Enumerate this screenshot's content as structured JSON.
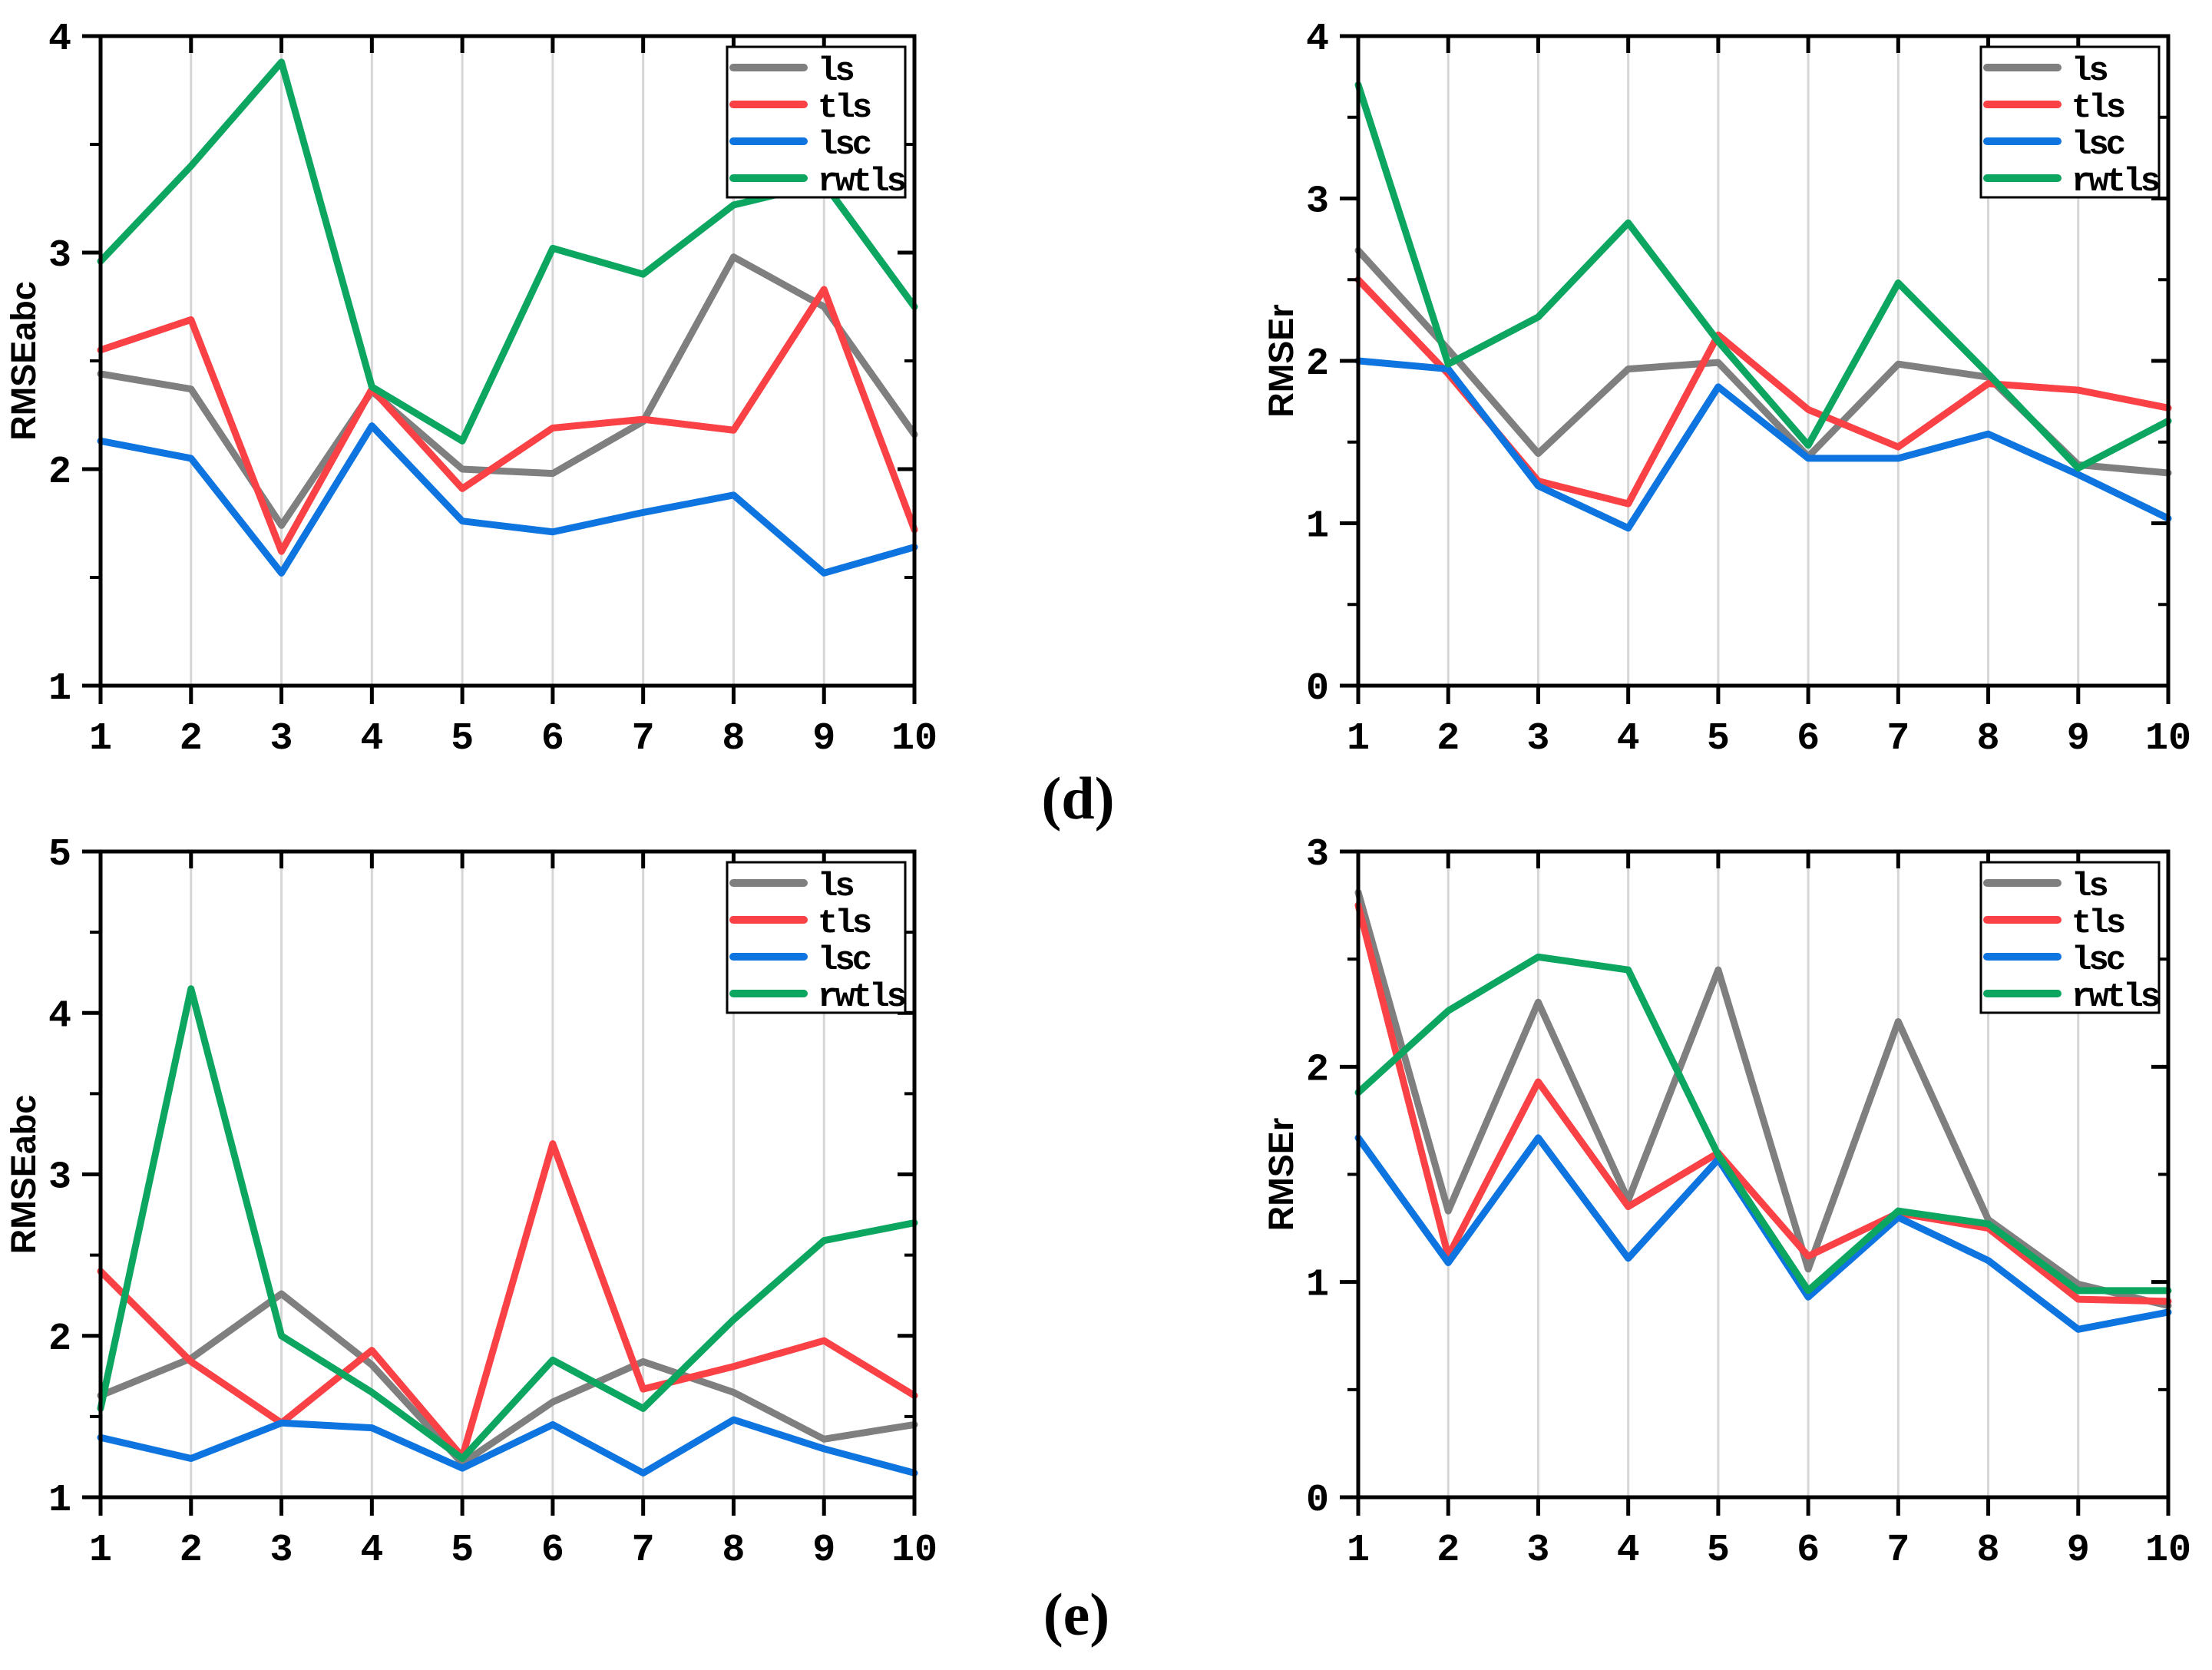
{
  "figure": {
    "background": "#ffffff",
    "panel_labels": [
      {
        "id": "d",
        "text": "(d)"
      },
      {
        "id": "e",
        "text": "(e)"
      }
    ],
    "legend_labels": [
      "ls",
      "tls",
      "lsc",
      "rwtls"
    ],
    "colors": {
      "ls": "#7f7f7f",
      "tls": "#fa4145",
      "lsc": "#0d74e0",
      "rwtls": "#0ca661",
      "grid": "#d6d6d6",
      "axis": "#000000",
      "legend_bg": "#ffffff"
    }
  },
  "chart_data": [
    {
      "id": "d-left",
      "type": "line",
      "panel": "(d)",
      "title": "",
      "xlabel": "",
      "ylabel": "RMSEabc",
      "x": [
        1,
        2,
        3,
        4,
        5,
        6,
        7,
        8,
        9,
        10
      ],
      "xlim": [
        1,
        10
      ],
      "ylim": [
        1,
        4
      ],
      "xticks": [
        1,
        2,
        3,
        4,
        5,
        6,
        7,
        8,
        9,
        10
      ],
      "yticks": [
        1,
        2,
        3,
        4
      ],
      "minor_tick_step": 0.5,
      "grid": "vertical",
      "legend_position": "top-right",
      "series": [
        {
          "name": "ls",
          "color": "#7f7f7f",
          "values": [
            2.44,
            2.37,
            1.74,
            2.36,
            2.0,
            1.98,
            2.22,
            2.98,
            2.75,
            2.16
          ]
        },
        {
          "name": "tls",
          "color": "#fa4145",
          "values": [
            2.55,
            2.69,
            1.62,
            2.37,
            1.91,
            2.19,
            2.23,
            2.18,
            2.83,
            1.72
          ]
        },
        {
          "name": "lsc",
          "color": "#0d74e0",
          "values": [
            2.13,
            2.05,
            1.52,
            2.2,
            1.76,
            1.71,
            1.8,
            1.88,
            1.52,
            1.64
          ]
        },
        {
          "name": "rwtls",
          "color": "#0ca661",
          "values": [
            2.96,
            3.4,
            3.88,
            2.38,
            2.13,
            3.02,
            2.9,
            3.22,
            3.32,
            2.75
          ]
        }
      ]
    },
    {
      "id": "d-right",
      "type": "line",
      "panel": "(d)",
      "title": "",
      "xlabel": "",
      "ylabel": "RMSEr",
      "x": [
        1,
        2,
        3,
        4,
        5,
        6,
        7,
        8,
        9,
        10
      ],
      "xlim": [
        1,
        10
      ],
      "ylim": [
        0,
        4
      ],
      "xticks": [
        1,
        2,
        3,
        4,
        5,
        6,
        7,
        8,
        9,
        10
      ],
      "yticks": [
        0,
        1,
        2,
        3,
        4
      ],
      "minor_tick_step": 0.5,
      "grid": "vertical",
      "legend_position": "top-right",
      "series": [
        {
          "name": "ls",
          "color": "#7f7f7f",
          "values": [
            2.68,
            2.07,
            1.43,
            1.95,
            1.99,
            1.41,
            1.98,
            1.9,
            1.36,
            1.31
          ]
        },
        {
          "name": "tls",
          "color": "#fa4145",
          "values": [
            2.5,
            1.92,
            1.26,
            1.12,
            2.16,
            1.7,
            1.47,
            1.86,
            1.82,
            1.71
          ]
        },
        {
          "name": "lsc",
          "color": "#0d74e0",
          "values": [
            2.0,
            1.95,
            1.23,
            0.97,
            1.84,
            1.4,
            1.4,
            1.55,
            1.3,
            1.03
          ]
        },
        {
          "name": "rwtls",
          "color": "#0ca661",
          "values": [
            3.7,
            1.98,
            2.27,
            2.85,
            2.12,
            1.48,
            2.48,
            1.92,
            1.34,
            1.63
          ]
        }
      ]
    },
    {
      "id": "e-left",
      "type": "line",
      "panel": "(e)",
      "title": "",
      "xlabel": "",
      "ylabel": "RMSEabc",
      "x": [
        1,
        2,
        3,
        4,
        5,
        6,
        7,
        8,
        9,
        10
      ],
      "xlim": [
        1,
        10
      ],
      "ylim": [
        1,
        5
      ],
      "xticks": [
        1,
        2,
        3,
        4,
        5,
        6,
        7,
        8,
        9,
        10
      ],
      "yticks": [
        1,
        2,
        3,
        4,
        5
      ],
      "minor_tick_step": 0.5,
      "grid": "vertical",
      "legend_position": "top-right",
      "series": [
        {
          "name": "ls",
          "color": "#7f7f7f",
          "values": [
            1.63,
            1.86,
            2.26,
            1.82,
            1.21,
            1.59,
            1.84,
            1.65,
            1.36,
            1.45
          ]
        },
        {
          "name": "tls",
          "color": "#fa4145",
          "values": [
            2.4,
            1.84,
            1.46,
            1.91,
            1.25,
            3.19,
            1.67,
            1.81,
            1.97,
            1.63
          ]
        },
        {
          "name": "lsc",
          "color": "#0d74e0",
          "values": [
            1.37,
            1.24,
            1.46,
            1.43,
            1.18,
            1.45,
            1.15,
            1.48,
            1.3,
            1.15
          ]
        },
        {
          "name": "rwtls",
          "color": "#0ca661",
          "values": [
            1.55,
            4.15,
            2.0,
            1.65,
            1.24,
            1.85,
            1.55,
            2.1,
            2.59,
            2.7
          ]
        }
      ]
    },
    {
      "id": "e-right",
      "type": "line",
      "panel": "(e)",
      "title": "",
      "xlabel": "",
      "ylabel": "RMSEr",
      "x": [
        1,
        2,
        3,
        4,
        5,
        6,
        7,
        8,
        9,
        10
      ],
      "xlim": [
        1,
        10
      ],
      "ylim": [
        0,
        3
      ],
      "xticks": [
        1,
        2,
        3,
        4,
        5,
        6,
        7,
        8,
        9,
        10
      ],
      "yticks": [
        0,
        1,
        2,
        3
      ],
      "minor_tick_step": 0.5,
      "grid": "vertical",
      "legend_position": "top-right",
      "series": [
        {
          "name": "ls",
          "color": "#7f7f7f",
          "values": [
            2.81,
            1.33,
            2.3,
            1.38,
            2.45,
            1.06,
            2.21,
            1.29,
            0.99,
            0.89
          ]
        },
        {
          "name": "tls",
          "color": "#fa4145",
          "values": [
            2.75,
            1.12,
            1.93,
            1.35,
            1.6,
            1.12,
            1.32,
            1.25,
            0.92,
            0.91
          ]
        },
        {
          "name": "lsc",
          "color": "#0d74e0",
          "values": [
            1.67,
            1.09,
            1.67,
            1.11,
            1.57,
            0.93,
            1.3,
            1.1,
            0.78,
            0.86
          ]
        },
        {
          "name": "rwtls",
          "color": "#0ca661",
          "values": [
            1.88,
            2.26,
            2.51,
            2.45,
            1.59,
            0.96,
            1.33,
            1.27,
            0.96,
            0.96
          ]
        }
      ]
    }
  ]
}
